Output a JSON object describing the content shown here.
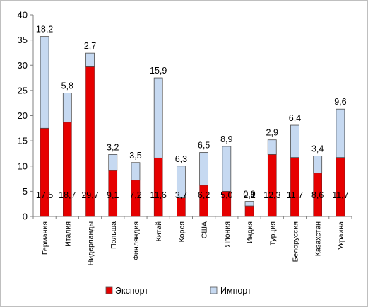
{
  "chart_data": {
    "type": "bar",
    "stacked": true,
    "categories": [
      "Германия",
      "Италия",
      "Нидерланды",
      "Польша",
      "Финляндия",
      "Китай",
      "Корея",
      "США",
      "Япония",
      "Индия",
      "Турция",
      "Белоруссия",
      "Казахстан",
      "Украина"
    ],
    "series": [
      {
        "name": "Экспорт",
        "color": "#e60000",
        "values": [
          17.5,
          18.7,
          29.7,
          9.1,
          7.2,
          11.6,
          3.7,
          6.2,
          5.0,
          2.1,
          12.3,
          11.7,
          8.6,
          11.7
        ]
      },
      {
        "name": "Импорт",
        "color": "#c6d9f1",
        "values": [
          18.2,
          5.8,
          2.7,
          3.2,
          3.5,
          15.9,
          6.3,
          6.5,
          8.9,
          0.9,
          2.9,
          6.4,
          3.4,
          9.6
        ]
      }
    ],
    "data_labels": {
      "Экспорт": [
        "17,5",
        "18,7",
        "29,7",
        "9,1",
        "7,2",
        "11,6",
        "3,7",
        "6,2",
        "5,0",
        "2,1",
        "12,3",
        "11,7",
        "8,6",
        "11,7"
      ],
      "Импорт": [
        "18,2",
        "5,8",
        "2,7",
        "3,2",
        "3,5",
        "15,9",
        "6,3",
        "6,5",
        "8,9",
        "0,9",
        "2,9",
        "6,4",
        "3,4",
        "9,6"
      ]
    },
    "ylim": [
      0,
      40
    ],
    "yticks": [
      0,
      5,
      10,
      15,
      20,
      25,
      30,
      35,
      40
    ],
    "grid": false,
    "legend_position": "bottom"
  }
}
